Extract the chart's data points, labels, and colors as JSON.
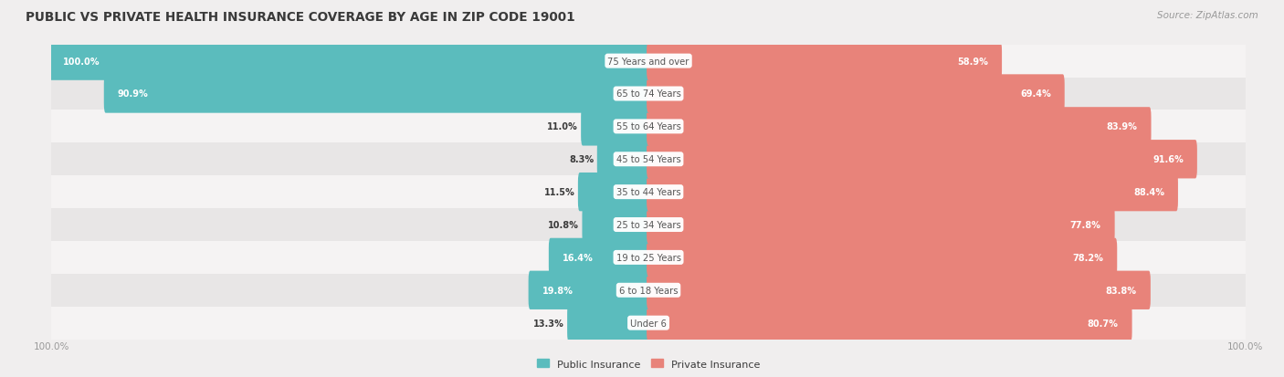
{
  "title": "PUBLIC VS PRIVATE HEALTH INSURANCE COVERAGE BY AGE IN ZIP CODE 19001",
  "source": "Source: ZipAtlas.com",
  "categories": [
    "Under 6",
    "6 to 18 Years",
    "19 to 25 Years",
    "25 to 34 Years",
    "35 to 44 Years",
    "45 to 54 Years",
    "55 to 64 Years",
    "65 to 74 Years",
    "75 Years and over"
  ],
  "public_values": [
    13.3,
    19.8,
    16.4,
    10.8,
    11.5,
    8.3,
    11.0,
    90.9,
    100.0
  ],
  "private_values": [
    80.7,
    83.8,
    78.2,
    77.8,
    88.4,
    91.6,
    83.9,
    69.4,
    58.9
  ],
  "public_color": "#5bbcbd",
  "private_color": "#e8837a",
  "bg_color": "#f0eeee",
  "row_bg_light": "#f5f3f3",
  "row_bg_dark": "#e8e6e6",
  "title_color": "#3a3a3a",
  "label_color": "#3a3a3a",
  "bar_text_color": "#ffffff",
  "center_label_color": "#555555",
  "axis_label_color": "#999999",
  "legend_public": "Public Insurance",
  "legend_private": "Private Insurance"
}
